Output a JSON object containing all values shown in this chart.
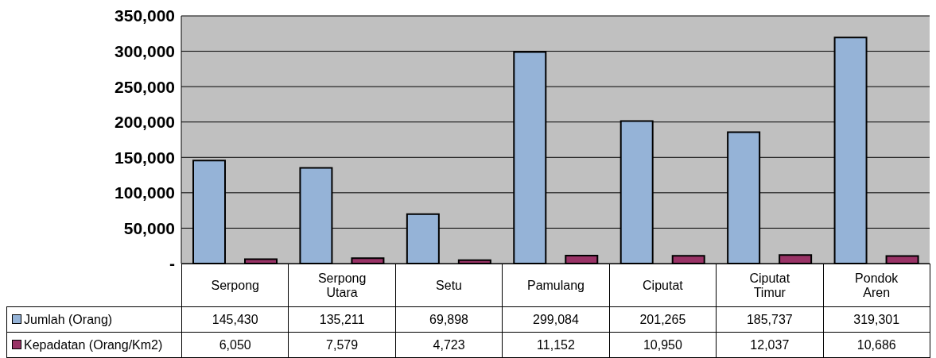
{
  "chart_data": {
    "type": "bar",
    "categories": [
      "Serpong",
      "Serpong Utara",
      "Setu",
      "Pamulang",
      "Ciputat",
      "Ciputat Timur",
      "Pondok Aren"
    ],
    "series": [
      {
        "name": "Jumlah (Orang)",
        "color": "#95b3d7",
        "values": [
          145430,
          135211,
          69898,
          299084,
          201265,
          185737,
          319301
        ],
        "value_labels": [
          "145,430",
          "135,211",
          "69,898",
          "299,084",
          "201,265",
          "185,737",
          "319,301"
        ]
      },
      {
        "name": "Kepadatan (Orang/Km2)",
        "color": "#993366",
        "values": [
          6050,
          7579,
          4723,
          11152,
          10950,
          12037,
          10686
        ],
        "value_labels": [
          "6,050",
          "7,579",
          "4,723",
          "11,152",
          "10,950",
          "12,037",
          "10,686"
        ]
      }
    ],
    "ylim": [
      0,
      350000
    ],
    "yticks": [
      {
        "value": 0,
        "label": "-"
      },
      {
        "value": 50000,
        "label": "50,000"
      },
      {
        "value": 100000,
        "label": "100,000"
      },
      {
        "value": 150000,
        "label": "150,000"
      },
      {
        "value": 200000,
        "label": "200,000"
      },
      {
        "value": 250000,
        "label": "250,000"
      },
      {
        "value": 300000,
        "label": "300,000"
      },
      {
        "value": 350000,
        "label": "350,000"
      }
    ],
    "grid": "y",
    "legend": "bottom left"
  }
}
